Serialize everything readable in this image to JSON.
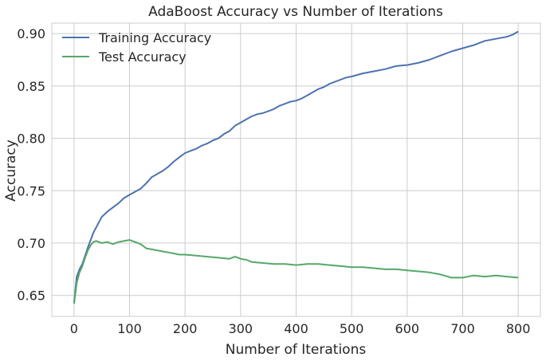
{
  "chart_data": {
    "type": "line",
    "title": "AdaBoost Accuracy vs Number of Iterations",
    "xlabel": "Number of Iterations",
    "ylabel": "Accuracy",
    "xlim": [
      -40,
      840
    ],
    "ylim": [
      0.63,
      0.91
    ],
    "xticks": [
      0,
      100,
      200,
      300,
      400,
      500,
      600,
      700,
      800
    ],
    "yticks": [
      0.65,
      0.7,
      0.75,
      0.8,
      0.85,
      0.9
    ],
    "ytick_labels": [
      "0.65",
      "0.70",
      "0.75",
      "0.80",
      "0.85",
      "0.90"
    ],
    "grid": true,
    "legend": "top-left",
    "series": [
      {
        "name": "Training Accuracy",
        "color": "#4c72b0",
        "x": [
          0,
          5,
          10,
          15,
          20,
          25,
          30,
          35,
          40,
          45,
          50,
          60,
          70,
          80,
          90,
          100,
          110,
          120,
          130,
          140,
          150,
          160,
          170,
          180,
          190,
          200,
          210,
          220,
          230,
          240,
          250,
          260,
          270,
          280,
          290,
          300,
          310,
          320,
          330,
          340,
          350,
          360,
          370,
          380,
          390,
          400,
          410,
          420,
          430,
          440,
          450,
          460,
          470,
          480,
          490,
          500,
          520,
          540,
          560,
          580,
          600,
          620,
          640,
          660,
          680,
          700,
          720,
          740,
          760,
          780,
          790,
          800
        ],
        "y": [
          0.643,
          0.668,
          0.675,
          0.68,
          0.688,
          0.696,
          0.703,
          0.71,
          0.715,
          0.72,
          0.725,
          0.73,
          0.734,
          0.738,
          0.743,
          0.746,
          0.749,
          0.752,
          0.757,
          0.763,
          0.766,
          0.769,
          0.773,
          0.778,
          0.782,
          0.786,
          0.788,
          0.79,
          0.793,
          0.795,
          0.798,
          0.8,
          0.804,
          0.807,
          0.812,
          0.815,
          0.818,
          0.821,
          0.823,
          0.824,
          0.826,
          0.828,
          0.831,
          0.833,
          0.835,
          0.836,
          0.838,
          0.841,
          0.844,
          0.847,
          0.849,
          0.852,
          0.854,
          0.856,
          0.858,
          0.859,
          0.862,
          0.864,
          0.866,
          0.869,
          0.87,
          0.872,
          0.875,
          0.879,
          0.883,
          0.886,
          0.889,
          0.893,
          0.895,
          0.897,
          0.899,
          0.902
        ]
      },
      {
        "name": "Test Accuracy",
        "color": "#55a868",
        "x": [
          0,
          5,
          10,
          15,
          20,
          25,
          30,
          35,
          40,
          50,
          60,
          70,
          80,
          90,
          100,
          110,
          120,
          130,
          140,
          150,
          160,
          170,
          180,
          190,
          200,
          220,
          240,
          260,
          280,
          290,
          300,
          310,
          320,
          340,
          360,
          380,
          400,
          420,
          440,
          460,
          480,
          500,
          520,
          540,
          560,
          580,
          600,
          620,
          640,
          660,
          680,
          700,
          720,
          740,
          760,
          780,
          800
        ],
        "y": [
          0.642,
          0.662,
          0.672,
          0.678,
          0.686,
          0.693,
          0.698,
          0.701,
          0.702,
          0.7,
          0.701,
          0.699,
          0.701,
          0.702,
          0.703,
          0.701,
          0.699,
          0.695,
          0.694,
          0.693,
          0.692,
          0.691,
          0.69,
          0.689,
          0.689,
          0.688,
          0.687,
          0.686,
          0.685,
          0.687,
          0.685,
          0.684,
          0.682,
          0.681,
          0.68,
          0.68,
          0.679,
          0.68,
          0.68,
          0.679,
          0.678,
          0.677,
          0.677,
          0.676,
          0.675,
          0.675,
          0.674,
          0.673,
          0.672,
          0.67,
          0.667,
          0.667,
          0.669,
          0.668,
          0.669,
          0.668,
          0.667
        ]
      }
    ]
  }
}
